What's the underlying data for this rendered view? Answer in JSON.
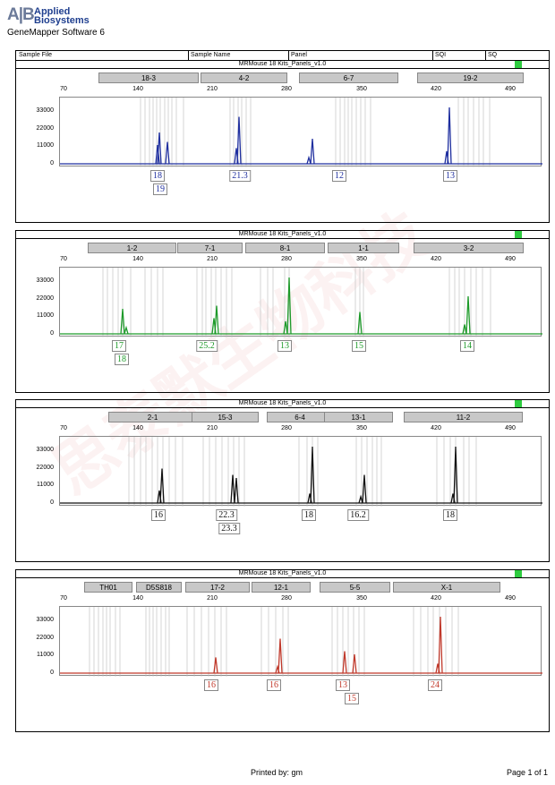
{
  "header": {
    "logo_mark": "A|B",
    "logo_line1": "Applied",
    "logo_line2": "Biosystems",
    "software": "GeneMapper Software 6",
    "columns": [
      "Sample File",
      "Sample Name",
      "Panel",
      "SQI",
      "SQ"
    ]
  },
  "watermark": "思泰默生物科技",
  "axis_ticks": [
    "70",
    "140",
    "210",
    "280",
    "350",
    "420",
    "490"
  ],
  "y_ticks": [
    "33000",
    "22000",
    "11000",
    "0"
  ],
  "panels": [
    {
      "title": "MRMouse 18 Kits_Panels_v1.0",
      "color": "#1f2f9f",
      "loci": [
        "18-3",
        "4-2",
        "6-7",
        "19-2"
      ],
      "alleles": [
        "18",
        "19",
        "21.3",
        "12",
        "13"
      ]
    },
    {
      "title": "MRMouse 18 Kits_Panels_v1.0",
      "color": "#1e9a2a",
      "loci": [
        "1-2",
        "7-1",
        "8-1",
        "1-1",
        "3-2"
      ],
      "alleles": [
        "17",
        "18",
        "25.2",
        "13",
        "15",
        "14"
      ]
    },
    {
      "title": "MRMouse 18 Kits_Panels_v1.0",
      "color": "#111111",
      "loci": [
        "2-1",
        "15-3",
        "6-4",
        "13-1",
        "11-2"
      ],
      "alleles": [
        "16",
        "22.3",
        "23.3",
        "18",
        "16.2",
        "18"
      ]
    },
    {
      "title": "MRMouse 18 Kits_Panels_v1.0",
      "color": "#c0392b",
      "loci": [
        "TH01",
        "D5S818",
        "17-2",
        "12-1",
        "5-5",
        "X-1"
      ],
      "alleles": [
        "16",
        "16",
        "13",
        "15",
        "24"
      ]
    }
  ],
  "footer": {
    "printed_by": "Printed by: gm",
    "page": "Page 1 of 1"
  }
}
